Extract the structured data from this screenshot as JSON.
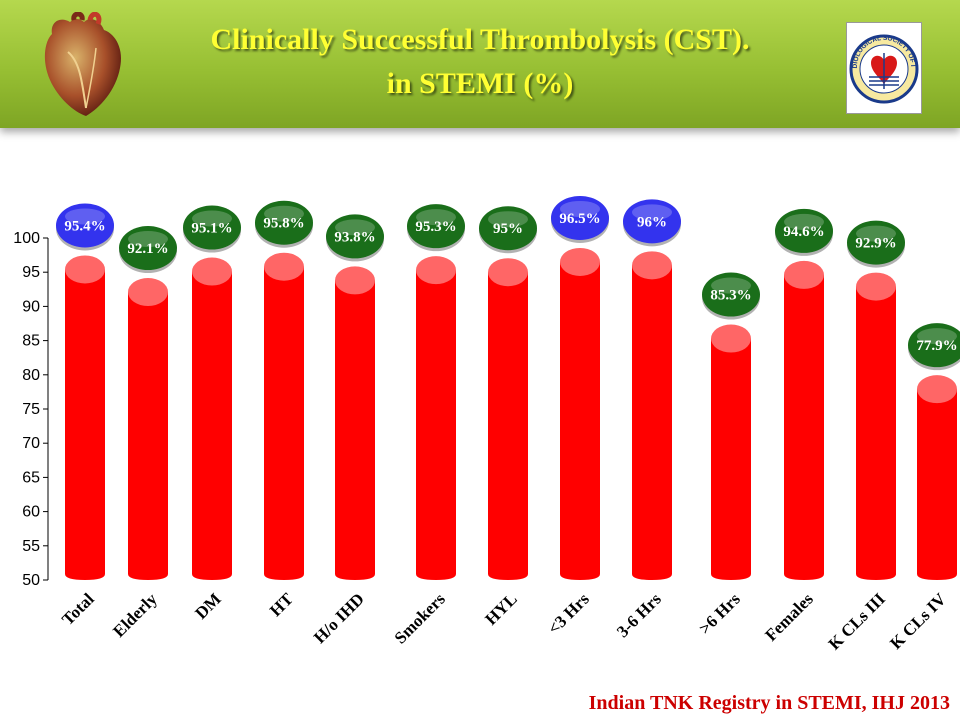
{
  "header": {
    "title_line1": "Clinically Successful Thrombolysis (CST).",
    "title_line2": "in STEMI (%)",
    "logo_text": "CARDIOLOGICAL SOCIETY OF INDIA"
  },
  "footer": {
    "citation": "Indian  TNK Registry in STEMI, IHJ 2013"
  },
  "colors": {
    "bar": "#ff0000",
    "bar_top": "#ff6666",
    "badge_green": "#1a6e1a",
    "badge_blue": "#3333ee",
    "title": "#ffff33"
  },
  "chart_data": {
    "type": "bar",
    "ylim": [
      50,
      100
    ],
    "yticks": [
      50,
      55,
      60,
      65,
      70,
      75,
      80,
      85,
      90,
      95,
      100
    ],
    "categories": [
      "Total",
      "Elderly",
      "DM",
      "HT",
      "H/o IHD",
      "Smokers",
      "HYL",
      "<3 Hrs",
      "3-6 Hrs",
      ">6 Hrs",
      "Females",
      "K CLs III",
      "K CLs IV"
    ],
    "values": [
      95.4,
      92.1,
      95.1,
      95.8,
      93.8,
      95.3,
      95,
      96.5,
      96,
      85.3,
      94.6,
      92.9,
      77.9
    ],
    "labels": [
      "95.4%",
      "92.1%",
      "95.1%",
      "95.8%",
      "93.8%",
      "95.3%",
      "95%",
      "96.5%",
      "96%",
      "85.3%",
      "94.6%",
      "92.9%",
      "77.9%"
    ],
    "label_colors": [
      "blue",
      "green",
      "green",
      "green",
      "green",
      "green",
      "green",
      "blue",
      "blue",
      "green",
      "green",
      "green",
      "green"
    ]
  }
}
